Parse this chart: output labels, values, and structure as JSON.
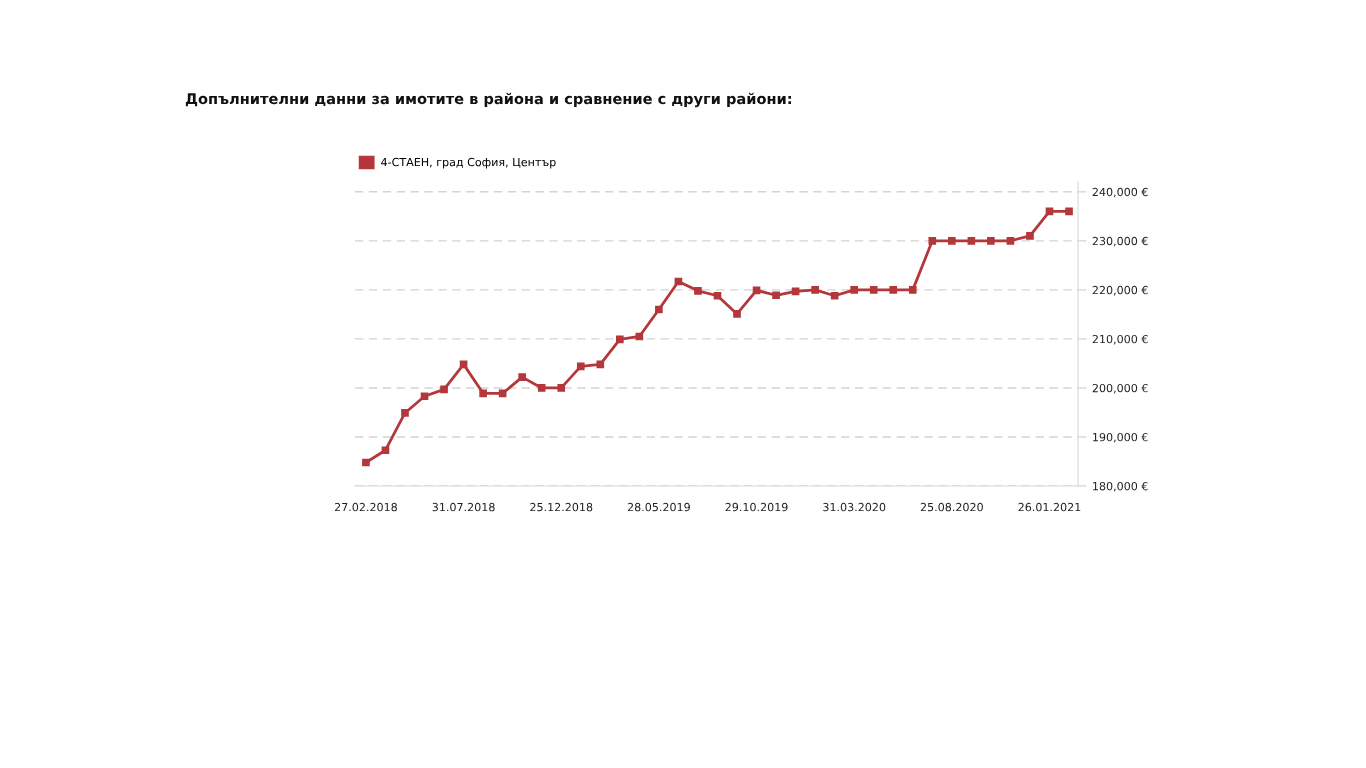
{
  "chart_data": {
    "type": "line",
    "title": "Допълнителни данни за имотите в района и сравнение с други райони:",
    "categories": [
      "27.02.2018",
      null,
      null,
      null,
      null,
      "31.07.2018",
      null,
      null,
      null,
      null,
      "25.12.2018",
      null,
      null,
      null,
      null,
      "28.05.2019",
      null,
      null,
      null,
      null,
      "29.10.2019",
      null,
      null,
      null,
      null,
      "31.03.2020",
      null,
      null,
      null,
      null,
      "25.08.2020",
      null,
      null,
      null,
      null,
      "26.01.2021",
      null
    ],
    "series": [
      {
        "name": "4-СТАЕН, град София, Център",
        "color": "#b3373b",
        "values": [
          184800,
          187300,
          194900,
          198300,
          199700,
          204800,
          198900,
          198900,
          202200,
          200000,
          200000,
          204400,
          204800,
          209900,
          210500,
          216000,
          221700,
          219800,
          218800,
          215100,
          219900,
          218900,
          219700,
          220000,
          218800,
          220000,
          220000,
          220000,
          220000,
          230000,
          230000,
          230000,
          230000,
          230000,
          231000,
          236000,
          236000
        ]
      }
    ],
    "ylim": [
      180000,
      242000
    ],
    "yticks": [
      {
        "value": 180000,
        "label": "180,000 €"
      },
      {
        "value": 190000,
        "label": "190,000 €"
      },
      {
        "value": 200000,
        "label": "200,000 €"
      },
      {
        "value": 210000,
        "label": "210,000 €"
      },
      {
        "value": 220000,
        "label": "220,000 €"
      },
      {
        "value": 230000,
        "label": "230,000 €"
      },
      {
        "value": 240000,
        "label": "240,000 €"
      }
    ],
    "grid": "y",
    "legend": "top left",
    "marker": "square",
    "line_style": "solid"
  }
}
